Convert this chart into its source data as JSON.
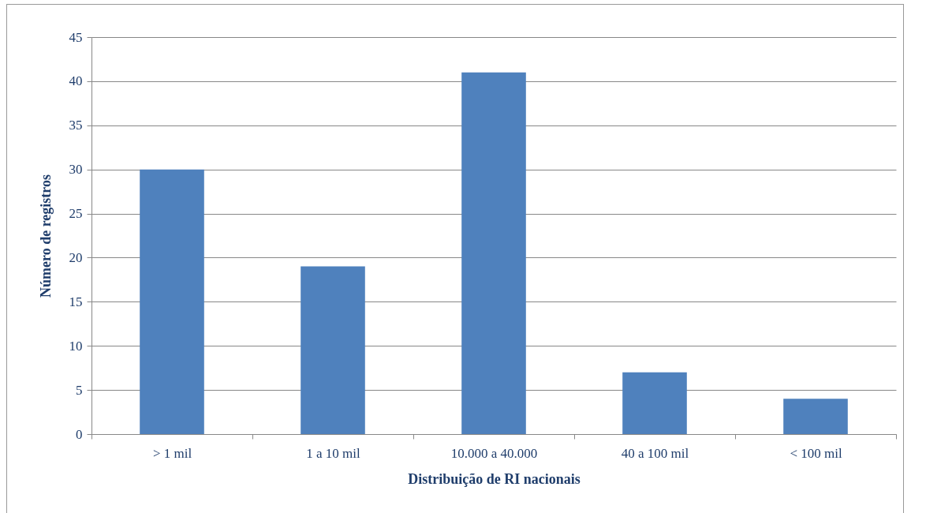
{
  "chart_data": {
    "type": "bar",
    "xlabel": "Distribuição de RI nacionais",
    "ylabel": "Número de registros",
    "categories": [
      "> 1 mil",
      "1 a 10 mil",
      "10.000 a 40.000",
      "40 a 100 mil",
      "< 100 mil"
    ],
    "values": [
      30,
      19,
      41,
      7,
      4
    ],
    "color": "#4f81bd",
    "ylim": [
      0,
      45
    ],
    "yticks": [
      0,
      5,
      10,
      15,
      20,
      25,
      30,
      35,
      40,
      45
    ],
    "grid": "y"
  }
}
